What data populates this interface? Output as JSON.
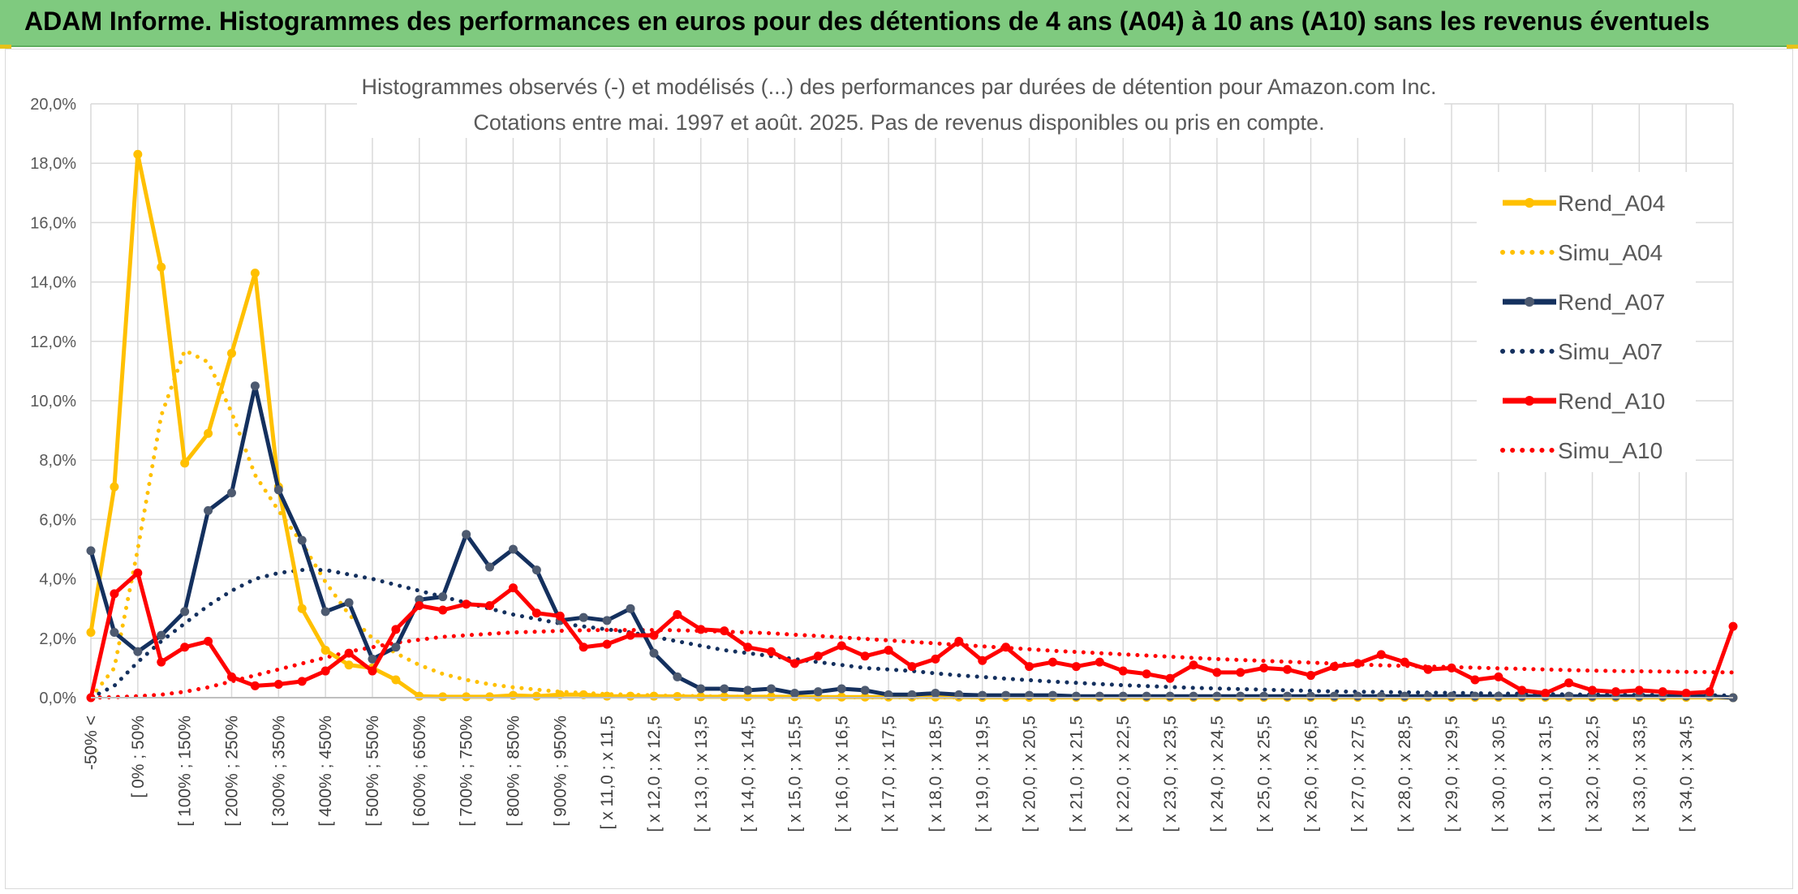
{
  "header": {
    "title": "ADAM Informe. Histogrammes des performances en euros pour des détentions de 4 ans (A04) à 10 ans (A10) sans les revenus éventuels"
  },
  "colors": {
    "banner": "#7fca7f",
    "a04": "#ffc000",
    "a07": "#14305e",
    "a10": "#ff0000",
    "grid": "#d9d9d9"
  },
  "chart_data": {
    "type": "line",
    "title": "Histogrammes observés (-) et modélisés (...) des performances par durées de détention pour Amazon.com Inc.",
    "subtitle": "Cotations entre mai. 1997 et août. 2025. Pas de revenus disponibles ou pris en compte.",
    "xlabel": "",
    "ylabel": "",
    "ylim": [
      0,
      20
    ],
    "y_ticks": [
      "0,0%",
      "2,0%",
      "4,0%",
      "6,0%",
      "8,0%",
      "10,0%",
      "12,0%",
      "14,0%",
      "16,0%",
      "18,0%",
      "20,0%"
    ],
    "grid": true,
    "legend_position": "right",
    "categories": [
      "-50% <",
      "",
      "[ 0% ; 50%",
      "",
      "[ 100% ; 150%",
      "",
      "[ 200% ; 250%",
      "",
      "[ 300% ; 350%",
      "",
      "[ 400% ; 450%",
      "",
      "[ 500% ; 550%",
      "",
      "[ 600% ; 650%",
      "",
      "[ 700% ; 750%",
      "",
      "[ 800% ; 850%",
      "",
      "[ 900% ; 950%",
      "",
      "[ x 11,0 ; x 11,5",
      "",
      "[ x 12,0 ; x 12,5",
      "",
      "[ x 13,0 ; x 13,5",
      "",
      "[ x 14,0 ; x 14,5",
      "",
      "[ x 15,0 ; x 15,5",
      "",
      "[ x 16,0 ; x 16,5",
      "",
      "[ x 17,0 ; x 17,5",
      "",
      "[ x 18,0 ; x 18,5",
      "",
      "[ x 19,0 ; x 19,5",
      "",
      "[ x 20,0 ; x 20,5",
      "",
      "[ x 21,0 ; x 21,5",
      "",
      "[ x 22,0 ; x 22,5",
      "",
      "[ x 23,0 ; x 23,5",
      "",
      "[ x 24,0 ; x 24,5",
      "",
      "[ x 25,0 ; x 25,5",
      "",
      "[ x 26,0 ; x 26,5",
      "",
      "[ x 27,0 ; x 27,5",
      "",
      "[ x 28,0 ; x 28,5",
      "",
      "[ x 29,0 ; x 29,5",
      "",
      "[ x 30,0 ; x 30,5",
      "",
      "[ x 31,0 ; x 31,5",
      "",
      "[ x 32,0 ; x 32,5",
      "",
      "[ x 33,0 ; x 33,5",
      "",
      "[ x 34,0 ; x 34,5",
      "",
      ""
    ],
    "series": [
      {
        "name": "Rend_A04",
        "style": "solid",
        "color": "#ffc000",
        "values": [
          2.2,
          7.1,
          18.3,
          14.5,
          7.9,
          8.9,
          11.6,
          14.3,
          7.1,
          3.0,
          1.6,
          1.1,
          1.0,
          0.6,
          0.05,
          0.03,
          0.03,
          0.03,
          0.08,
          0.05,
          0.1,
          0.1,
          0.05,
          0.05,
          0.05,
          0.04,
          0.03,
          0.03,
          0.03,
          0.03,
          0.03,
          0.02,
          0.02,
          0.02,
          0.02,
          0.02,
          0.02,
          0.02,
          0.01,
          0.01,
          0.01,
          0.01,
          0.01,
          0.01,
          0.01,
          0.01,
          0.01,
          0.01,
          0.01,
          0.01,
          0.01,
          0.01,
          0.01,
          0.01,
          0.01,
          0.01,
          0.01,
          0.01,
          0.01,
          0.01,
          0.01,
          0.01,
          0.01,
          0.01,
          0.01,
          0.01,
          0.01,
          0.01,
          0.01,
          0.01,
          0.0
        ]
      },
      {
        "name": "Simu_A04",
        "style": "dotted",
        "color": "#ffc000",
        "values": [
          0.0,
          1.0,
          5.0,
          9.5,
          11.7,
          11.3,
          9.6,
          7.5,
          6.3,
          5.2,
          3.9,
          2.8,
          2.0,
          1.5,
          1.1,
          0.8,
          0.6,
          0.45,
          0.35,
          0.27,
          0.2,
          0.16,
          0.12,
          0.1,
          0.08,
          0.06,
          0.05,
          0.04,
          0.03,
          0.03,
          0.02,
          0.02,
          0.02,
          0.01,
          0.01,
          0.01,
          0.01,
          0.01,
          0.01,
          0.01,
          0.01,
          0.01,
          0.01,
          0.01,
          0.01,
          0.01,
          0.01,
          0.01,
          0.01,
          0.01,
          0.01,
          0.01,
          0.01,
          0.01,
          0.01,
          0.01,
          0.01,
          0.01,
          0.01,
          0.01,
          0.01,
          0.01,
          0.01,
          0.01,
          0.01,
          0.01,
          0.01,
          0.01,
          0.01,
          0.01,
          0.01
        ]
      },
      {
        "name": "Rend_A07",
        "style": "solid",
        "color": "#14305e",
        "values": [
          4.95,
          2.2,
          1.55,
          2.1,
          2.9,
          6.3,
          6.9,
          10.5,
          7.0,
          5.3,
          2.9,
          3.2,
          1.3,
          1.7,
          3.3,
          3.4,
          5.5,
          4.4,
          5.0,
          4.3,
          2.6,
          2.7,
          2.6,
          3.0,
          1.5,
          0.7,
          0.3,
          0.3,
          0.25,
          0.3,
          0.15,
          0.2,
          0.3,
          0.25,
          0.1,
          0.1,
          0.15,
          0.1,
          0.08,
          0.08,
          0.08,
          0.08,
          0.05,
          0.05,
          0.05,
          0.05,
          0.05,
          0.05,
          0.05,
          0.05,
          0.05,
          0.05,
          0.05,
          0.05,
          0.05,
          0.05,
          0.05,
          0.05,
          0.05,
          0.05,
          0.05,
          0.05,
          0.05,
          0.05,
          0.05,
          0.05,
          0.05,
          0.05,
          0.05,
          0.05,
          0.0
        ]
      },
      {
        "name": "Simu_A07",
        "style": "dotted",
        "color": "#14305e",
        "values": [
          0.0,
          0.4,
          1.2,
          1.9,
          2.5,
          3.1,
          3.6,
          4.0,
          4.2,
          4.3,
          4.3,
          4.15,
          4.0,
          3.8,
          3.6,
          3.4,
          3.2,
          3.0,
          2.8,
          2.65,
          2.5,
          2.4,
          2.3,
          2.2,
          2.05,
          1.9,
          1.75,
          1.6,
          1.5,
          1.4,
          1.3,
          1.2,
          1.1,
          1.0,
          0.95,
          0.9,
          0.82,
          0.75,
          0.7,
          0.64,
          0.59,
          0.54,
          0.5,
          0.46,
          0.42,
          0.39,
          0.36,
          0.33,
          0.31,
          0.29,
          0.27,
          0.25,
          0.23,
          0.21,
          0.2,
          0.19,
          0.18,
          0.17,
          0.16,
          0.15,
          0.14,
          0.13,
          0.12,
          0.11,
          0.1,
          0.1,
          0.09,
          0.09,
          0.08,
          0.08,
          0.07
        ]
      },
      {
        "name": "Rend_A10",
        "style": "solid",
        "color": "#ff0000",
        "values": [
          0.0,
          3.5,
          4.2,
          1.2,
          1.7,
          1.9,
          0.7,
          0.4,
          0.45,
          0.55,
          0.9,
          1.5,
          0.9,
          2.3,
          3.1,
          2.95,
          3.15,
          3.1,
          3.7,
          2.85,
          2.75,
          1.7,
          1.8,
          2.1,
          2.1,
          2.8,
          2.3,
          2.25,
          1.7,
          1.55,
          1.15,
          1.4,
          1.75,
          1.4,
          1.6,
          1.05,
          1.3,
          1.9,
          1.25,
          1.7,
          1.05,
          1.2,
          1.05,
          1.2,
          0.9,
          0.8,
          0.65,
          1.1,
          0.85,
          0.85,
          1.0,
          0.95,
          0.75,
          1.05,
          1.15,
          1.45,
          1.2,
          0.95,
          1.0,
          0.6,
          0.7,
          0.25,
          0.15,
          0.5,
          0.25,
          0.2,
          0.25,
          0.2,
          0.15,
          0.2,
          2.4
        ]
      },
      {
        "name": "Simu_A10",
        "style": "dotted",
        "color": "#ff0000",
        "values": [
          0.0,
          0.02,
          0.05,
          0.1,
          0.2,
          0.35,
          0.55,
          0.75,
          0.95,
          1.15,
          1.35,
          1.55,
          1.7,
          1.85,
          1.95,
          2.05,
          2.1,
          2.15,
          2.2,
          2.22,
          2.25,
          2.27,
          2.28,
          2.28,
          2.28,
          2.27,
          2.25,
          2.22,
          2.2,
          2.17,
          2.12,
          2.08,
          2.03,
          1.98,
          1.93,
          1.88,
          1.83,
          1.78,
          1.73,
          1.68,
          1.63,
          1.58,
          1.54,
          1.5,
          1.46,
          1.42,
          1.38,
          1.34,
          1.3,
          1.27,
          1.24,
          1.21,
          1.18,
          1.15,
          1.12,
          1.09,
          1.07,
          1.05,
          1.03,
          1.01,
          0.99,
          0.97,
          0.95,
          0.93,
          0.91,
          0.9,
          0.89,
          0.88,
          0.87,
          0.86,
          0.85
        ]
      }
    ]
  }
}
